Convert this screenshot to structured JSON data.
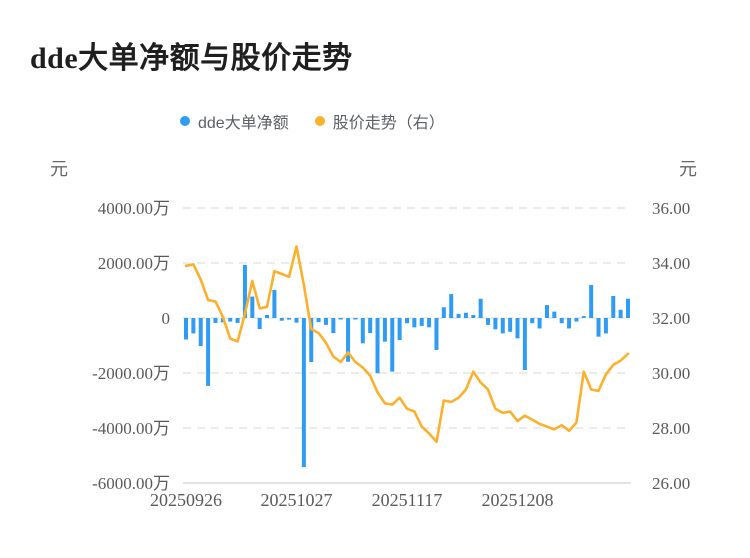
{
  "header": {
    "title": "dde大单净额与股价走势"
  },
  "legend": [
    {
      "label": "dde大单净额",
      "color": "#2f9cf4"
    },
    {
      "label": "股价走势（右）",
      "color": "#fbb02e"
    }
  ],
  "left_axis_unit": "元",
  "right_axis_unit": "元",
  "colors": {
    "bar": "#2f9cf4",
    "line": "#fbb02e",
    "grid": "#ebebeb",
    "grid_bottom": "#d9d9d9",
    "tick_text": "#5a5a5a"
  },
  "chart_data": {
    "type": "combo",
    "title": "dde大单净额与股价走势",
    "x_tick_labels": [
      "20250926",
      "20251027",
      "20251117",
      "20251208"
    ],
    "x_tick_indices": [
      0,
      15,
      30,
      45
    ],
    "left_axis": {
      "unit": "元",
      "tick_labels": [
        "4000.00万",
        "2000.00万",
        "0",
        "-2000.00万",
        "-4000.00万",
        "-6000.00万"
      ],
      "max": 4000,
      "min": -6000
    },
    "right_axis": {
      "unit": "元",
      "tick_labels": [
        "36.00",
        "34.00",
        "32.00",
        "30.00",
        "28.00",
        "26.00"
      ],
      "max": 36,
      "min": 26
    },
    "grid": "dashed-horizontal",
    "legend_position": "top-center",
    "series": [
      {
        "name": "dde大单净额",
        "type": "bar",
        "axis": "left",
        "unit": "万元",
        "color": "#2f9cf4",
        "values": [
          -780,
          -560,
          -1020,
          -2470,
          -180,
          -160,
          -130,
          -180,
          1930,
          780,
          -400,
          110,
          1020,
          -100,
          -60,
          -170,
          -5420,
          -1600,
          -150,
          -250,
          -550,
          -30,
          -1590,
          -30,
          -920,
          -550,
          -2010,
          -860,
          -1950,
          -800,
          -190,
          -340,
          -290,
          -340,
          -1160,
          390,
          870,
          150,
          190,
          110,
          700,
          -250,
          -410,
          -560,
          -500,
          -740,
          -1890,
          -190,
          -380,
          470,
          230,
          -190,
          -380,
          -130,
          70,
          1200,
          -680,
          -560,
          800,
          300,
          700
        ]
      },
      {
        "name": "股价走势（右）",
        "type": "line",
        "axis": "right",
        "unit": "元",
        "color": "#fbb02e",
        "values": [
          33.9,
          33.95,
          33.4,
          32.65,
          32.6,
          32.05,
          31.25,
          31.15,
          32.15,
          33.35,
          32.35,
          32.4,
          33.7,
          33.6,
          33.5,
          34.6,
          33.2,
          31.6,
          31.45,
          31.1,
          30.6,
          30.4,
          30.75,
          30.4,
          30.2,
          29.9,
          29.3,
          28.9,
          28.85,
          29.1,
          28.7,
          28.6,
          28.05,
          27.8,
          27.5,
          29.0,
          28.95,
          29.1,
          29.4,
          30.05,
          29.65,
          29.4,
          28.7,
          28.55,
          28.6,
          28.25,
          28.45,
          28.3,
          28.15,
          28.05,
          27.95,
          28.1,
          27.9,
          28.2,
          30.05,
          29.4,
          29.35,
          29.95,
          30.3,
          30.45,
          30.7
        ]
      }
    ]
  }
}
